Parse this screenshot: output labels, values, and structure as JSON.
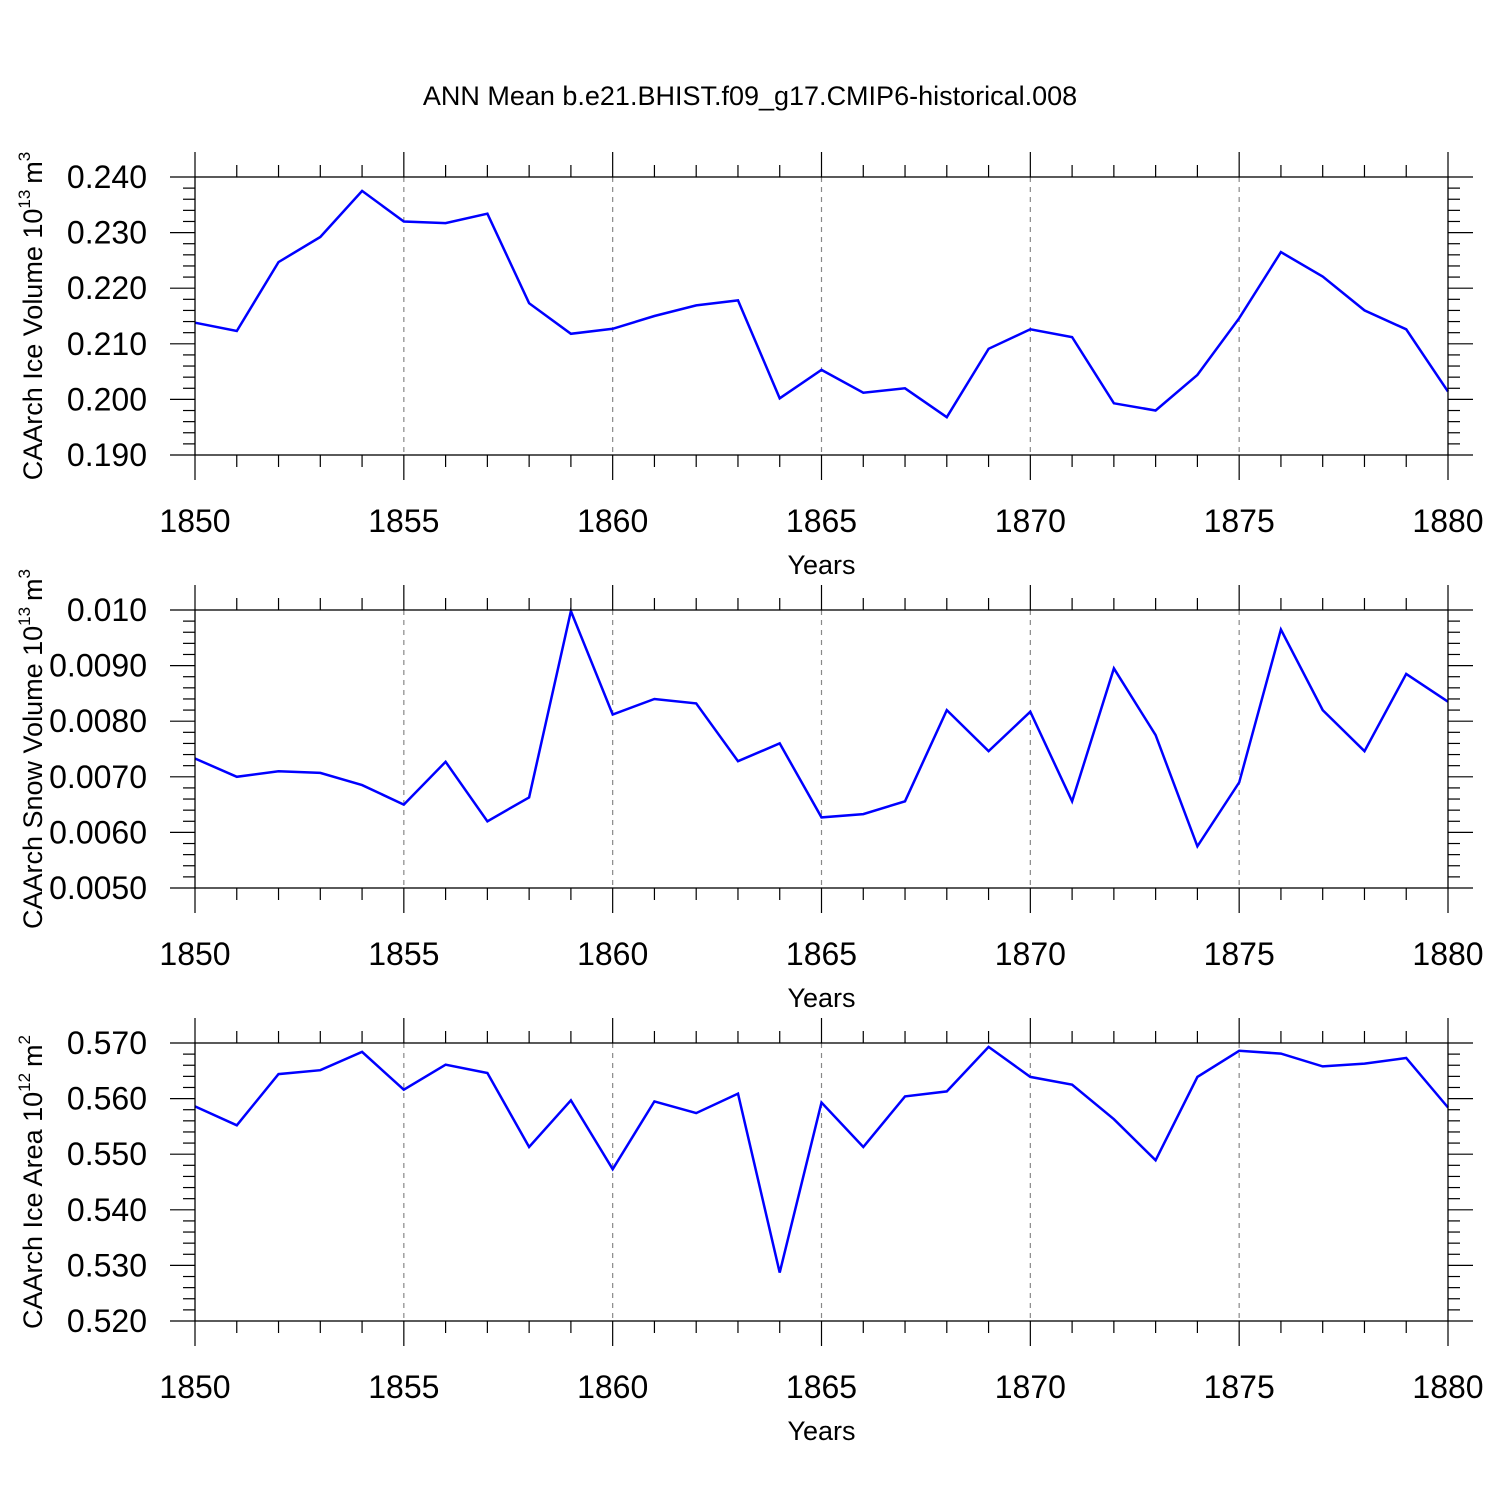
{
  "figure": {
    "title": "ANN Mean b.e21.BHIST.f09_g17.CMIP6-historical.008"
  },
  "colors": {
    "line": "#0000ff",
    "axis": "#000000",
    "grid": "#888888"
  },
  "chart_data": [
    {
      "type": "line",
      "id": "ice-volume",
      "ylabel_main": "CAArch Ice Volume 10",
      "ylabel_exp": "13",
      "ylabel_unit": "m",
      "ylabel_unit_exp": "3",
      "xlabel": "Years",
      "xlim": [
        1850,
        1880
      ],
      "ylim": [
        0.19,
        0.24
      ],
      "xticks": [
        1850,
        1855,
        1860,
        1865,
        1870,
        1875,
        1880
      ],
      "xtick_labels": [
        "1850",
        "1855",
        "1860",
        "1865",
        "1870",
        "1875",
        "1880"
      ],
      "yticks": [
        0.19,
        0.2,
        0.21,
        0.22,
        0.23,
        0.24
      ],
      "ytick_labels": [
        "0.190",
        "0.200",
        "0.210",
        "0.220",
        "0.230",
        "0.240"
      ],
      "grid": "vertical dashed at major x ticks",
      "series": [
        {
          "name": "CAArch Ice Volume",
          "x": [
            1850,
            1851,
            1852,
            1853,
            1854,
            1855,
            1856,
            1857,
            1858,
            1859,
            1860,
            1861,
            1862,
            1863,
            1864,
            1865,
            1866,
            1867,
            1868,
            1869,
            1870,
            1871,
            1872,
            1873,
            1874,
            1875,
            1876,
            1877,
            1878,
            1879,
            1880
          ],
          "values": [
            0.2138,
            0.2123,
            0.2247,
            0.2292,
            0.2375,
            0.232,
            0.2317,
            0.2334,
            0.2173,
            0.2118,
            0.2127,
            0.215,
            0.2169,
            0.2178,
            0.2002,
            0.2053,
            0.2012,
            0.202,
            0.1968,
            0.2091,
            0.2126,
            0.2112,
            0.1993,
            0.198,
            0.2044,
            0.2146,
            0.2265,
            0.2221,
            0.216,
            0.2126,
            0.2014
          ]
        }
      ]
    },
    {
      "type": "line",
      "id": "snow-volume",
      "ylabel_main": "CAArch Snow Volume 10",
      "ylabel_exp": "13",
      "ylabel_unit": "m",
      "ylabel_unit_exp": "3",
      "xlabel": "Years",
      "xlim": [
        1850,
        1880
      ],
      "ylim": [
        0.005,
        0.01
      ],
      "xticks": [
        1850,
        1855,
        1860,
        1865,
        1870,
        1875,
        1880
      ],
      "xtick_labels": [
        "1850",
        "1855",
        "1860",
        "1865",
        "1870",
        "1875",
        "1880"
      ],
      "yticks": [
        0.005,
        0.006,
        0.007,
        0.008,
        0.009,
        0.01
      ],
      "ytick_labels": [
        "0.0050",
        "0.0060",
        "0.0070",
        "0.0080",
        "0.0090",
        "0.010"
      ],
      "grid": "vertical dashed at major x ticks",
      "series": [
        {
          "name": "CAArch Snow Volume",
          "x": [
            1850,
            1851,
            1852,
            1853,
            1854,
            1855,
            1856,
            1857,
            1858,
            1859,
            1860,
            1861,
            1862,
            1863,
            1864,
            1865,
            1866,
            1867,
            1868,
            1869,
            1870,
            1871,
            1872,
            1873,
            1874,
            1875,
            1876,
            1877,
            1878,
            1879,
            1880
          ],
          "values": [
            0.00733,
            0.007,
            0.0071,
            0.00707,
            0.00685,
            0.0065,
            0.00727,
            0.0062,
            0.00663,
            0.00998,
            0.00812,
            0.0084,
            0.00832,
            0.00728,
            0.0076,
            0.00627,
            0.00633,
            0.00656,
            0.0082,
            0.00746,
            0.00817,
            0.00656,
            0.00895,
            0.00775,
            0.00575,
            0.0069,
            0.00965,
            0.0082,
            0.00746,
            0.00885,
            0.00835
          ]
        }
      ]
    },
    {
      "type": "line",
      "id": "ice-area",
      "ylabel_main": "CAArch Ice Area 10",
      "ylabel_exp": "12",
      "ylabel_unit": "m",
      "ylabel_unit_exp": "2",
      "xlabel": "Years",
      "xlim": [
        1850,
        1880
      ],
      "ylim": [
        0.52,
        0.57
      ],
      "xticks": [
        1850,
        1855,
        1860,
        1865,
        1870,
        1875,
        1880
      ],
      "xtick_labels": [
        "1850",
        "1855",
        "1860",
        "1865",
        "1870",
        "1875",
        "1880"
      ],
      "yticks": [
        0.52,
        0.53,
        0.54,
        0.55,
        0.56,
        0.57
      ],
      "ytick_labels": [
        "0.520",
        "0.530",
        "0.540",
        "0.550",
        "0.560",
        "0.570"
      ],
      "grid": "vertical dashed at major x ticks",
      "series": [
        {
          "name": "CAArch Ice Area",
          "x": [
            1850,
            1851,
            1852,
            1853,
            1854,
            1855,
            1856,
            1857,
            1858,
            1859,
            1860,
            1861,
            1862,
            1863,
            1864,
            1865,
            1866,
            1867,
            1868,
            1869,
            1870,
            1871,
            1872,
            1873,
            1874,
            1875,
            1876,
            1877,
            1878,
            1879,
            1880
          ],
          "values": [
            0.5586,
            0.5552,
            0.5644,
            0.5651,
            0.5684,
            0.5616,
            0.5661,
            0.5646,
            0.5513,
            0.5597,
            0.5473,
            0.5595,
            0.5574,
            0.5609,
            0.5287,
            0.5593,
            0.5513,
            0.5604,
            0.5613,
            0.5693,
            0.5639,
            0.5625,
            0.5563,
            0.5489,
            0.5639,
            0.5686,
            0.5681,
            0.5658,
            0.5663,
            0.5673,
            0.5584
          ]
        }
      ]
    }
  ]
}
